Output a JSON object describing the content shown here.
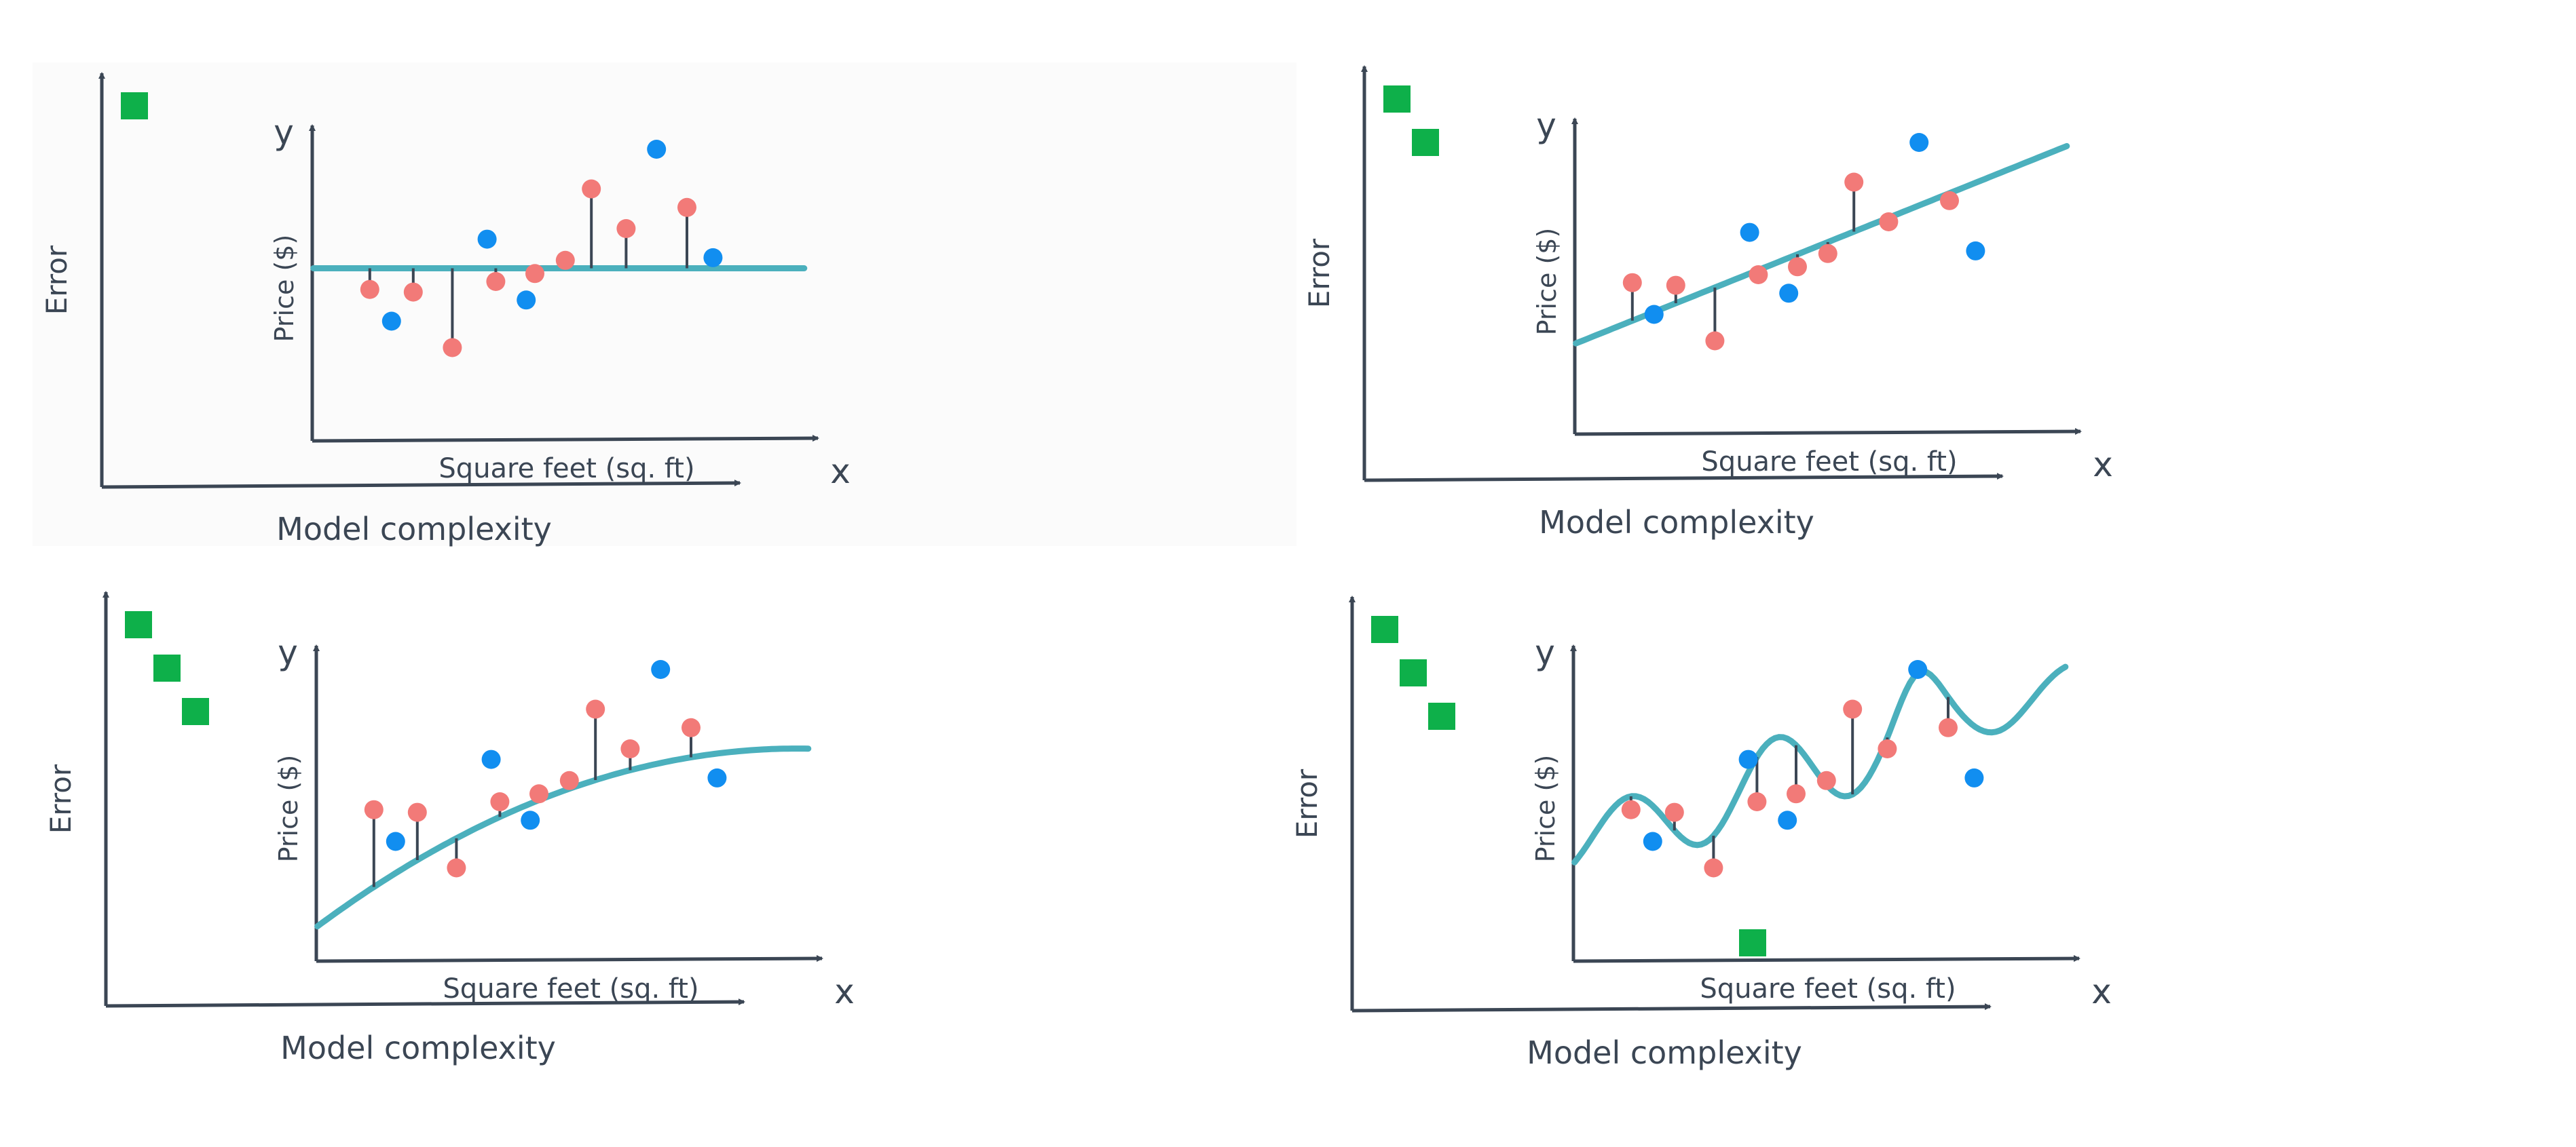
{
  "labels": {
    "error": "Error",
    "model_complexity": "Model complexity",
    "price": "Price ($)",
    "square_feet": "Square feet (sq. ft)",
    "y": "y",
    "x": "x"
  },
  "colors": {
    "axis": "#3b4654",
    "error_marker": "#0eb04a",
    "train_point": "#f27a78",
    "test_point": "#118ef0",
    "fit_line": "#4bb0bd",
    "residual": "#3b4654"
  },
  "panels": [
    {
      "name": "constant-fit",
      "fit_type": "constant",
      "error_marker_count": 1,
      "low_error_marker": false,
      "points": [
        {
          "sqft": 0.07,
          "price": 0.47,
          "set": "train"
        },
        {
          "sqft": 0.12,
          "price": 0.35,
          "set": "test"
        },
        {
          "sqft": 0.17,
          "price": 0.46,
          "set": "train"
        },
        {
          "sqft": 0.26,
          "price": 0.25,
          "set": "train"
        },
        {
          "sqft": 0.34,
          "price": 0.66,
          "set": "test"
        },
        {
          "sqft": 0.36,
          "price": 0.5,
          "set": "train"
        },
        {
          "sqft": 0.43,
          "price": 0.43,
          "set": "test"
        },
        {
          "sqft": 0.45,
          "price": 0.53,
          "set": "train"
        },
        {
          "sqft": 0.52,
          "price": 0.58,
          "set": "train"
        },
        {
          "sqft": 0.58,
          "price": 0.85,
          "set": "train"
        },
        {
          "sqft": 0.66,
          "price": 0.7,
          "set": "train"
        },
        {
          "sqft": 0.73,
          "price": 1.0,
          "set": "test"
        },
        {
          "sqft": 0.8,
          "price": 0.78,
          "set": "train"
        },
        {
          "sqft": 0.86,
          "price": 0.59,
          "set": "test"
        }
      ]
    },
    {
      "name": "linear-fit",
      "fit_type": "linear",
      "error_marker_count": 2,
      "low_error_marker": false,
      "points": [
        {
          "sqft": 0.07,
          "price": 0.47,
          "set": "train"
        },
        {
          "sqft": 0.12,
          "price": 0.35,
          "set": "test"
        },
        {
          "sqft": 0.17,
          "price": 0.46,
          "set": "train"
        },
        {
          "sqft": 0.26,
          "price": 0.25,
          "set": "train"
        },
        {
          "sqft": 0.34,
          "price": 0.66,
          "set": "test"
        },
        {
          "sqft": 0.36,
          "price": 0.5,
          "set": "train"
        },
        {
          "sqft": 0.43,
          "price": 0.43,
          "set": "test"
        },
        {
          "sqft": 0.45,
          "price": 0.53,
          "set": "train"
        },
        {
          "sqft": 0.52,
          "price": 0.58,
          "set": "train"
        },
        {
          "sqft": 0.58,
          "price": 0.85,
          "set": "train"
        },
        {
          "sqft": 0.66,
          "price": 0.7,
          "set": "train"
        },
        {
          "sqft": 0.73,
          "price": 1.0,
          "set": "test"
        },
        {
          "sqft": 0.8,
          "price": 0.78,
          "set": "train"
        },
        {
          "sqft": 0.86,
          "price": 0.59,
          "set": "test"
        }
      ]
    },
    {
      "name": "quadratic-fit",
      "fit_type": "quadratic",
      "error_marker_count": 3,
      "low_error_marker": false,
      "points": [
        {
          "sqft": 0.07,
          "price": 0.47,
          "set": "train"
        },
        {
          "sqft": 0.12,
          "price": 0.35,
          "set": "test"
        },
        {
          "sqft": 0.17,
          "price": 0.46,
          "set": "train"
        },
        {
          "sqft": 0.26,
          "price": 0.25,
          "set": "train"
        },
        {
          "sqft": 0.34,
          "price": 0.66,
          "set": "test"
        },
        {
          "sqft": 0.36,
          "price": 0.5,
          "set": "train"
        },
        {
          "sqft": 0.43,
          "price": 0.43,
          "set": "test"
        },
        {
          "sqft": 0.45,
          "price": 0.53,
          "set": "train"
        },
        {
          "sqft": 0.52,
          "price": 0.58,
          "set": "train"
        },
        {
          "sqft": 0.58,
          "price": 0.85,
          "set": "train"
        },
        {
          "sqft": 0.66,
          "price": 0.7,
          "set": "train"
        },
        {
          "sqft": 0.73,
          "price": 1.0,
          "set": "test"
        },
        {
          "sqft": 0.8,
          "price": 0.78,
          "set": "train"
        },
        {
          "sqft": 0.86,
          "price": 0.59,
          "set": "test"
        }
      ]
    },
    {
      "name": "high-degree-fit",
      "fit_type": "high-degree",
      "error_marker_count": 3,
      "low_error_marker": true,
      "points": [
        {
          "sqft": 0.07,
          "price": 0.47,
          "set": "train"
        },
        {
          "sqft": 0.12,
          "price": 0.35,
          "set": "test"
        },
        {
          "sqft": 0.17,
          "price": 0.46,
          "set": "train"
        },
        {
          "sqft": 0.26,
          "price": 0.25,
          "set": "train"
        },
        {
          "sqft": 0.34,
          "price": 0.66,
          "set": "test"
        },
        {
          "sqft": 0.36,
          "price": 0.5,
          "set": "train"
        },
        {
          "sqft": 0.43,
          "price": 0.43,
          "set": "test"
        },
        {
          "sqft": 0.45,
          "price": 0.53,
          "set": "train"
        },
        {
          "sqft": 0.52,
          "price": 0.58,
          "set": "train"
        },
        {
          "sqft": 0.58,
          "price": 0.85,
          "set": "train"
        },
        {
          "sqft": 0.66,
          "price": 0.7,
          "set": "train"
        },
        {
          "sqft": 0.73,
          "price": 1.0,
          "set": "test"
        },
        {
          "sqft": 0.8,
          "price": 0.78,
          "set": "train"
        },
        {
          "sqft": 0.86,
          "price": 0.59,
          "set": "test"
        }
      ]
    }
  ]
}
